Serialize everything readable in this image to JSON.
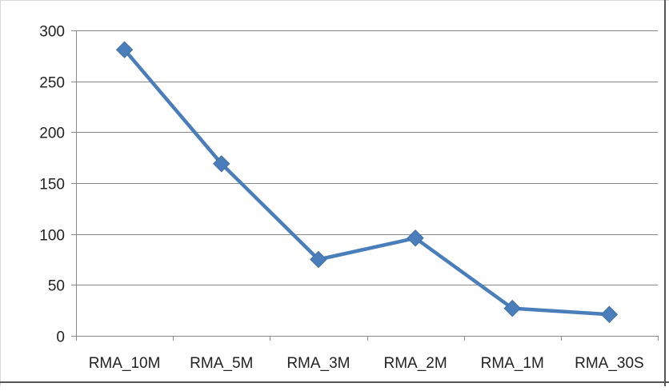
{
  "chart_data": {
    "type": "line",
    "title": "",
    "xlabel": "",
    "ylabel": "",
    "categories": [
      "RMA_10M",
      "RMA_5M",
      "RMA_3M",
      "RMA_2M",
      "RMA_1M",
      "RMA_30S"
    ],
    "series": [
      {
        "values": [
          281,
          169,
          75,
          96,
          27,
          21
        ]
      }
    ],
    "ylim": [
      0,
      300
    ],
    "yticks": [
      "0",
      "50",
      "100",
      "150",
      "200",
      "250",
      "300"
    ],
    "grid": true,
    "legend": "none",
    "marker": "diamond",
    "colors": {
      "series": "#4a7ebb",
      "grid": "#888888",
      "axis": "#888888"
    }
  }
}
